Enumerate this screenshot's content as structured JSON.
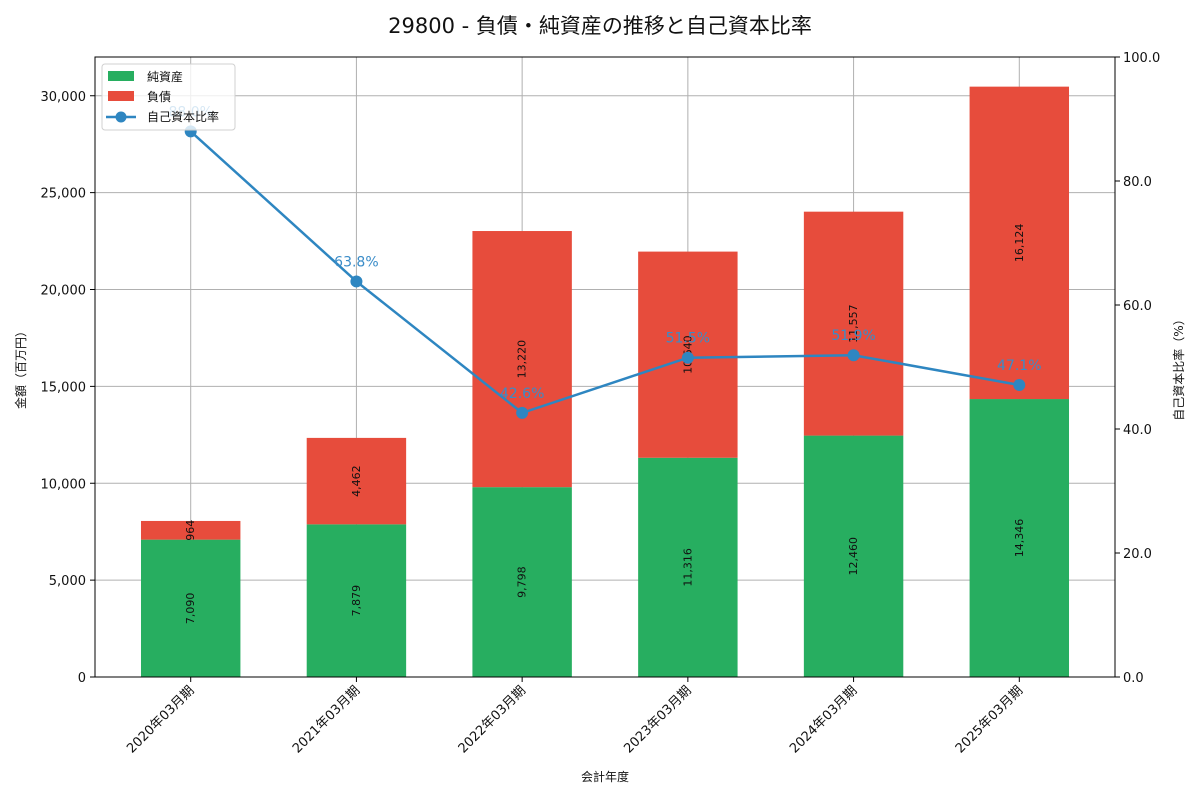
{
  "chart_data": {
    "type": "bar",
    "subtype": "stacked-bar-with-line-secondary-axis",
    "title": "29800 - 負債・純資産の推移と自己資本比率",
    "xlabel": "会計年度",
    "ylabel": "金額（百万円）",
    "y2label": "自己資本比率（%）",
    "categories": [
      "2020年03月期",
      "2021年03月期",
      "2022年03月期",
      "2023年03月期",
      "2024年03月期",
      "2025年03月期"
    ],
    "series": [
      {
        "name": "純資産",
        "type": "bar",
        "stack": "bs",
        "axis": "left",
        "color": "#27ae60",
        "values": [
          7090,
          7879,
          9798,
          11316,
          12460,
          14346
        ]
      },
      {
        "name": "負債",
        "type": "bar",
        "stack": "bs",
        "axis": "left",
        "color": "#e74c3c",
        "values": [
          964,
          4462,
          13220,
          10640,
          11557,
          16124
        ]
      },
      {
        "name": "自己資本比率",
        "type": "line",
        "axis": "right",
        "color": "#2e86c1",
        "values": [
          88.0,
          63.8,
          42.6,
          51.5,
          51.9,
          47.1
        ]
      }
    ],
    "ylim": [
      0,
      32000
    ],
    "y2lim": [
      0,
      100
    ],
    "yticks": [
      0,
      5000,
      10000,
      15000,
      20000,
      25000,
      30000
    ],
    "ytick_labels": [
      "0",
      "5,000",
      "10,000",
      "15,000",
      "20,000",
      "25,000",
      "30,000"
    ],
    "y2ticks": [
      0,
      20,
      40,
      60,
      80,
      100
    ],
    "y2tick_labels": [
      "0.0",
      "20.0",
      "40.0",
      "60.0",
      "80.0",
      "100.0"
    ],
    "bar_value_labels": {
      "純資産": [
        "7,090",
        "7,879",
        "9,798",
        "11,316",
        "12,460",
        "14,346"
      ],
      "負債": [
        "964",
        "4,462",
        "13,220",
        "10,640",
        "11,557",
        "16,124"
      ]
    },
    "line_value_labels": [
      "88.0%",
      "63.8%",
      "42.6%",
      "51.5%",
      "51.9%",
      "47.1%"
    ],
    "grid": true,
    "legend_position": "upper left",
    "legend": [
      "純資産",
      "負債",
      "自己資本比率"
    ]
  }
}
